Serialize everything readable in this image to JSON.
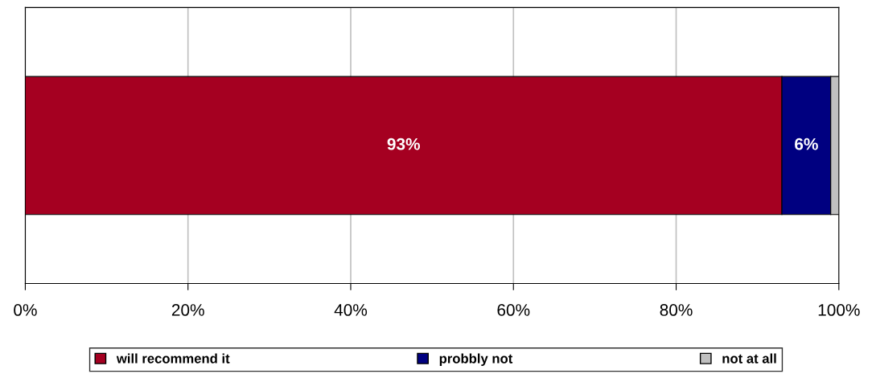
{
  "chart_data": {
    "type": "bar",
    "orientation": "horizontal",
    "stacked": true,
    "categories": [
      null
    ],
    "series": [
      {
        "name": "will recommend it",
        "color": "#a50021",
        "values": [
          93
        ],
        "value_labels": [
          "93%"
        ]
      },
      {
        "name": "probbly not",
        "color": "#000080",
        "values": [
          6
        ],
        "value_labels": [
          "6%"
        ]
      },
      {
        "name": "not at all",
        "color": "#c0c0c0",
        "values": [
          1
        ],
        "value_labels": [
          null
        ]
      }
    ],
    "xlim": [
      0,
      100
    ],
    "xticks": [
      {
        "value": 0,
        "label": "0%"
      },
      {
        "value": 20,
        "label": "20%"
      },
      {
        "value": 40,
        "label": "40%"
      },
      {
        "value": 60,
        "label": "60%"
      },
      {
        "value": 80,
        "label": "80%"
      },
      {
        "value": 100,
        "label": "100%"
      }
    ],
    "grid": "x",
    "legend": "bottom"
  }
}
